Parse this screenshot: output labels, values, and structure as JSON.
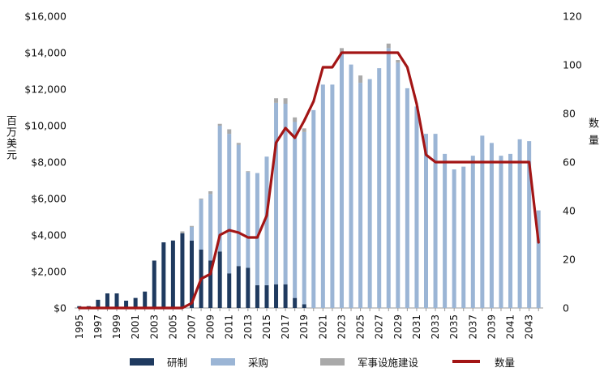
{
  "chart_data": {
    "type": "bar",
    "stacked": true,
    "grid": false,
    "legend_position": "bottom",
    "y_left_label": "百万美元",
    "y_right_label": "数量",
    "ylim_left": [
      0,
      16000
    ],
    "ylim_right": [
      0,
      120
    ],
    "y_left_ticks": [
      "$0",
      "$2,000",
      "$4,000",
      "$6,000",
      "$8,000",
      "$10,000",
      "$12,000",
      "$14,000",
      "$16,000"
    ],
    "y_right_ticks": [
      "0",
      "20",
      "40",
      "60",
      "80",
      "100",
      "120"
    ],
    "years": [
      1995,
      1996,
      1997,
      1998,
      1999,
      2000,
      2001,
      2002,
      2003,
      2004,
      2005,
      2006,
      2007,
      2008,
      2009,
      2010,
      2011,
      2012,
      2013,
      2014,
      2015,
      2016,
      2017,
      2018,
      2019,
      2020,
      2021,
      2022,
      2023,
      2024,
      2025,
      2026,
      2027,
      2028,
      2029,
      2030,
      2031,
      2032,
      2033,
      2034,
      2035,
      2036,
      2037,
      2038,
      2039,
      2040,
      2041,
      2042,
      2043,
      2044
    ],
    "x_tick_labels": [
      "1995",
      "1997",
      "1999",
      "2001",
      "2003",
      "2005",
      "2007",
      "2009",
      "2011",
      "2013",
      "2015",
      "2017",
      "2019",
      "2021",
      "2023",
      "2025",
      "2027",
      "2029",
      "2031",
      "2033",
      "2035",
      "2037",
      "2039",
      "2041",
      "2043"
    ],
    "series": [
      {
        "name": "研制",
        "kind": "bar",
        "axis": "left",
        "color": "#1f3a5f",
        "values": [
          100,
          100,
          450,
          800,
          800,
          400,
          550,
          900,
          2600,
          3600,
          3700,
          4100,
          3700,
          3200,
          2600,
          3100,
          1900,
          2300,
          2200,
          1250,
          1250,
          1300,
          1300,
          550,
          200,
          0,
          0,
          0,
          0,
          0,
          0,
          0,
          0,
          0,
          0,
          0,
          0,
          0,
          0,
          0,
          0,
          0,
          0,
          0,
          0,
          0,
          0,
          0,
          0,
          0
        ]
      },
      {
        "name": "采购",
        "kind": "bar",
        "axis": "left",
        "color": "#9bb5d5",
        "values": [
          0,
          0,
          0,
          0,
          0,
          0,
          0,
          0,
          0,
          0,
          0,
          0,
          750,
          2750,
          3650,
          6900,
          7650,
          6650,
          5250,
          6150,
          7050,
          9950,
          9900,
          9650,
          9450,
          10850,
          12250,
          12250,
          13950,
          13350,
          12350,
          12550,
          13150,
          14250,
          13450,
          12050,
          11050,
          9550,
          9550,
          8450,
          7600,
          7750,
          8350,
          9450,
          9050,
          8350,
          8450,
          9250,
          9150,
          5350
        ]
      },
      {
        "name": "军事设施建设",
        "kind": "bar",
        "axis": "left",
        "color": "#a9a9a9",
        "values": [
          0,
          0,
          0,
          0,
          0,
          0,
          0,
          0,
          0,
          0,
          0,
          100,
          50,
          50,
          150,
          100,
          250,
          100,
          50,
          0,
          0,
          250,
          300,
          250,
          200,
          0,
          0,
          0,
          300,
          0,
          400,
          0,
          0,
          250,
          150,
          0,
          0,
          0,
          0,
          0,
          0,
          0,
          0,
          0,
          0,
          0,
          0,
          0,
          0,
          0
        ]
      },
      {
        "name": "数量",
        "kind": "line",
        "axis": "right",
        "color": "#a31515",
        "values": [
          0,
          0,
          0,
          0,
          0,
          0,
          0,
          0,
          0,
          0,
          0,
          0,
          2,
          12,
          14,
          30,
          32,
          31,
          29,
          29,
          38,
          68,
          74,
          70,
          77,
          85,
          99,
          99,
          105,
          105,
          105,
          105,
          105,
          105,
          105,
          99,
          84,
          63,
          60,
          60,
          60,
          60,
          60,
          60,
          60,
          60,
          60,
          60,
          60,
          27
        ]
      }
    ]
  }
}
